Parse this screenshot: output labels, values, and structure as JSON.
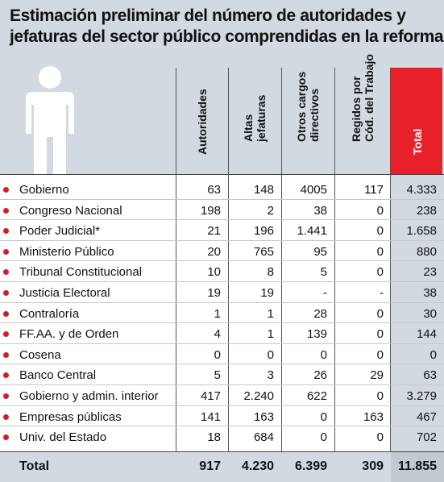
{
  "title": {
    "line1": "Estimación preliminar del número de autoridades y",
    "line2": "jefaturas del sector público comprendidas en la reforma"
  },
  "icon": "person-silhouette-icon",
  "columns": [
    {
      "line1": "Autoridades",
      "line2": ""
    },
    {
      "line1": "Altas",
      "line2": "jefaturas"
    },
    {
      "line1": "Otros cargos",
      "line2": "directivos"
    },
    {
      "line1": "Regidos por",
      "line2": "Cód. del Trabajo"
    },
    {
      "line1": "Total",
      "line2": ""
    }
  ],
  "rows": [
    {
      "label": "Gobierno",
      "v": [
        "63",
        "148",
        "4005",
        "117",
        "4.333"
      ]
    },
    {
      "label": "Congreso Nacional",
      "v": [
        "198",
        "2",
        "38",
        "0",
        "238"
      ]
    },
    {
      "label": "Poder Judicial*",
      "v": [
        "21",
        "196",
        "1.441",
        "0",
        "1.658"
      ]
    },
    {
      "label": "Ministerio Público",
      "v": [
        "20",
        "765",
        "95",
        "0",
        "880"
      ]
    },
    {
      "label": "Tribunal Constitucional",
      "v": [
        "10",
        "8",
        "5",
        "0",
        "23"
      ]
    },
    {
      "label": "Justicia Electoral",
      "v": [
        "19",
        "19",
        "-",
        "-",
        "38"
      ]
    },
    {
      "label": "Contraloría",
      "v": [
        "1",
        "1",
        "28",
        "0",
        "30"
      ]
    },
    {
      "label": "FF.AA. y de Orden",
      "v": [
        "4",
        "1",
        "139",
        "0",
        "144"
      ]
    },
    {
      "label": "Cosena",
      "v": [
        "0",
        "0",
        "0",
        "0",
        "0"
      ]
    },
    {
      "label": "Banco Central",
      "v": [
        "5",
        "3",
        "26",
        "29",
        "63"
      ]
    },
    {
      "label": "Gobierno y admin. interior",
      "v": [
        "417",
        "2.240",
        "622",
        "0",
        "3.279"
      ]
    },
    {
      "label": "Empresas públicas",
      "v": [
        "141",
        "163",
        "0",
        "163",
        "467"
      ]
    },
    {
      "label": "Univ. del Estado",
      "v": [
        "18",
        "684",
        "0",
        "0",
        "702"
      ]
    }
  ],
  "total": {
    "label": "Total",
    "v": [
      "917",
      "4.230",
      "6.399",
      "309",
      "11.855"
    ]
  },
  "colors": {
    "accent": "#e8202a",
    "header_bg": "#d3d9e0",
    "bullet": "#d61a26"
  }
}
